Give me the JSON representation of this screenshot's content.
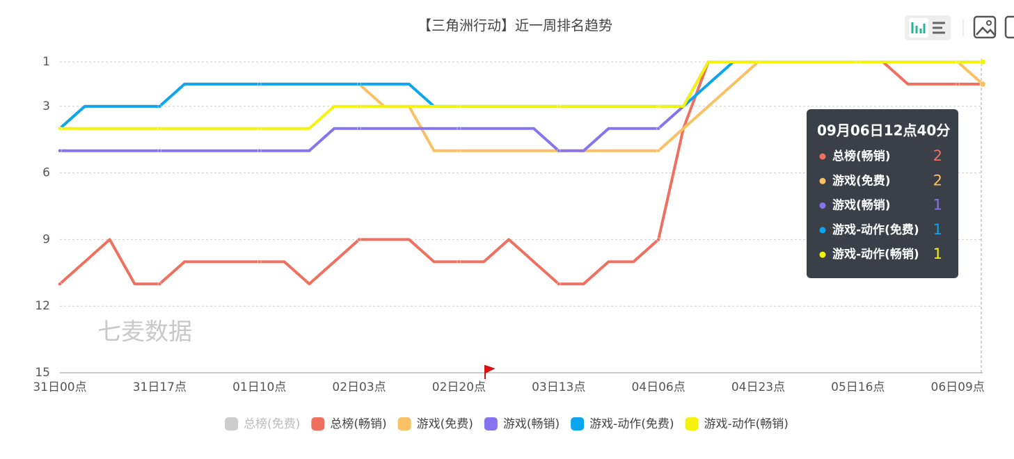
{
  "chart_data": {
    "type": "line",
    "title": "【三角洲行动】近一周排名趋势",
    "watermark": "七麦数据",
    "categories": [
      "31日00点",
      null,
      null,
      null,
      "31日17点",
      null,
      null,
      null,
      "01日10点",
      null,
      null,
      null,
      "02日03点",
      null,
      null,
      null,
      "02日20点",
      null,
      null,
      null,
      "03日13点",
      null,
      null,
      null,
      "04日06点",
      null,
      null,
      null,
      "04日23点",
      null,
      null,
      null,
      "05日16点",
      null,
      null,
      null,
      "06日09点",
      null
    ],
    "ylim": [
      1,
      15
    ],
    "y_inverted": true,
    "yticks": [
      1,
      3,
      6,
      9,
      12,
      15
    ],
    "grid": true,
    "inactive_legend": [
      {
        "name": "总榜(免费)",
        "color": "#cccccc"
      }
    ],
    "series": [
      {
        "name": "总榜(畅销)",
        "color": "#f0705f",
        "values": [
          11,
          10,
          9,
          11,
          11,
          10,
          10,
          10,
          10,
          10,
          11,
          10,
          9,
          9,
          9,
          10,
          10,
          10,
          9,
          10,
          11,
          11,
          10,
          10,
          9,
          4,
          1,
          1,
          1,
          1,
          1,
          1,
          1,
          1,
          2,
          2,
          2,
          2
        ]
      },
      {
        "name": "游戏(免费)",
        "color": "#f9c064",
        "values": [
          4,
          3,
          3,
          3,
          3,
          2,
          2,
          2,
          2,
          2,
          2,
          2,
          2,
          3,
          3,
          5,
          5,
          5,
          5,
          5,
          5,
          5,
          5,
          5,
          5,
          4,
          3,
          2,
          1,
          1,
          1,
          1,
          1,
          1,
          1,
          1,
          1,
          2
        ]
      },
      {
        "name": "游戏(畅销)",
        "color": "#8674ef",
        "values": [
          5,
          5,
          5,
          5,
          5,
          5,
          5,
          5,
          5,
          5,
          5,
          4,
          4,
          4,
          4,
          4,
          4,
          4,
          4,
          4,
          5,
          5,
          4,
          4,
          4,
          3,
          1,
          1,
          1,
          1,
          1,
          1,
          1,
          1,
          1,
          1,
          1,
          1
        ]
      },
      {
        "name": "游戏-动作(免费)",
        "color": "#0ba6ef",
        "values": [
          4,
          3,
          3,
          3,
          3,
          2,
          2,
          2,
          2,
          2,
          2,
          2,
          2,
          2,
          2,
          3,
          3,
          3,
          3,
          3,
          3,
          3,
          3,
          3,
          3,
          3,
          2,
          1,
          1,
          1,
          1,
          1,
          1,
          1,
          1,
          1,
          1,
          1
        ]
      },
      {
        "name": "游戏-动作(畅销)",
        "color": "#f5f20c",
        "values": [
          4,
          4,
          4,
          4,
          4,
          4,
          4,
          4,
          4,
          4,
          4,
          3,
          3,
          3,
          3,
          3,
          3,
          3,
          3,
          3,
          3,
          3,
          3,
          3,
          3,
          3,
          1,
          1,
          1,
          1,
          1,
          1,
          1,
          1,
          1,
          1,
          1,
          1
        ]
      }
    ],
    "tooltip": {
      "title": "09月06日12点40分",
      "items": [
        {
          "name": "总榜(畅销)",
          "value": 2,
          "color": "#f0705f"
        },
        {
          "name": "游戏(免费)",
          "value": 2,
          "color": "#f9c064"
        },
        {
          "name": "游戏(畅销)",
          "value": 1,
          "color": "#8674ef"
        },
        {
          "name": "游戏-动作(免费)",
          "value": 1,
          "color": "#0ba6ef"
        },
        {
          "name": "游戏-动作(畅销)",
          "value": 1,
          "color": "#f5f20c"
        }
      ]
    }
  }
}
